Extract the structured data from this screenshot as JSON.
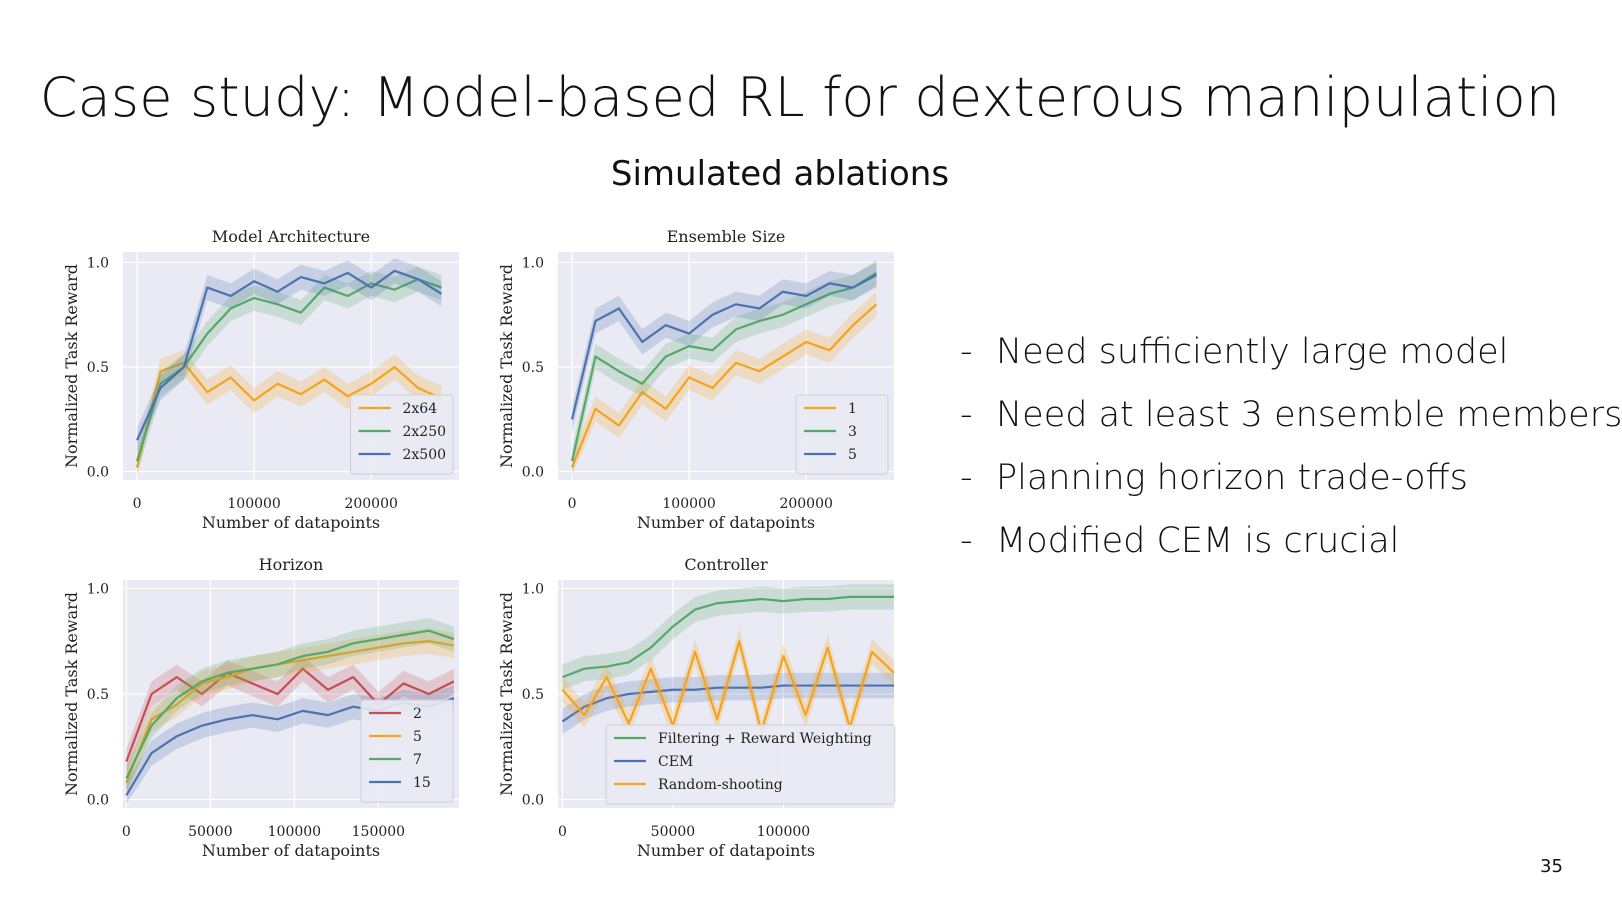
{
  "slide": {
    "title": "Case study: Model-based RL for dexterous manipulation",
    "subtitle": "Simulated ablations",
    "page_number": "35",
    "bullets": [
      "Need sufficiently large model",
      "Need at least 3 ensemble members",
      "Planning horizon trade-offs",
      "Modified CEM is crucial"
    ],
    "bullet_marker": "-"
  },
  "colors": {
    "plot_background": "#e9eaf3",
    "grid": "#ffffff",
    "orange": "#f5a31a",
    "green": "#55a868",
    "blue": "#4c72b0",
    "red": "#c44e52"
  },
  "chart_data": [
    {
      "id": "arch",
      "type": "line",
      "title": "Model Architecture",
      "xlabel": "Number of datapoints",
      "ylabel": "Normalized Task Reward",
      "xlim": [
        -12000,
        275000
      ],
      "ylim": [
        -0.04,
        1.05
      ],
      "xticks": [
        0,
        100000,
        200000
      ],
      "xtick_labels": [
        "0",
        "100000",
        "200000"
      ],
      "yticks": [
        0.0,
        0.5,
        1.0
      ],
      "ytick_labels": [
        "0.0",
        "0.5",
        "1.0"
      ],
      "legend_position": "lower-right",
      "x": [
        0,
        20000,
        40000,
        60000,
        80000,
        100000,
        120000,
        140000,
        160000,
        180000,
        200000,
        220000,
        240000,
        260000
      ],
      "series": [
        {
          "name": "2x64",
          "color": "#f5a31a",
          "values": [
            0.02,
            0.48,
            0.52,
            0.38,
            0.45,
            0.34,
            0.42,
            0.37,
            0.44,
            0.36,
            0.42,
            0.5,
            0.4,
            0.35
          ]
        },
        {
          "name": "2x250",
          "color": "#55a868",
          "values": [
            0.05,
            0.42,
            0.5,
            0.66,
            0.78,
            0.83,
            0.8,
            0.76,
            0.88,
            0.84,
            0.9,
            0.87,
            0.92,
            0.88
          ]
        },
        {
          "name": "2x500",
          "color": "#4c72b0",
          "values": [
            0.15,
            0.4,
            0.5,
            0.88,
            0.84,
            0.91,
            0.86,
            0.93,
            0.9,
            0.95,
            0.88,
            0.96,
            0.92,
            0.85
          ]
        }
      ]
    },
    {
      "id": "ensemble",
      "type": "line",
      "title": "Ensemble Size",
      "xlabel": "Number of datapoints",
      "ylabel": "Normalized Task Reward",
      "xlim": [
        -12000,
        275000
      ],
      "ylim": [
        -0.04,
        1.05
      ],
      "xticks": [
        0,
        100000,
        200000
      ],
      "xtick_labels": [
        "0",
        "100000",
        "200000"
      ],
      "yticks": [
        0.0,
        0.5,
        1.0
      ],
      "ytick_labels": [
        "0.0",
        "0.5",
        "1.0"
      ],
      "legend_position": "lower-right",
      "x": [
        0,
        20000,
        40000,
        60000,
        80000,
        100000,
        120000,
        140000,
        160000,
        180000,
        200000,
        220000,
        240000,
        260000
      ],
      "series": [
        {
          "name": "1",
          "color": "#f5a31a",
          "values": [
            0.02,
            0.3,
            0.22,
            0.38,
            0.3,
            0.45,
            0.4,
            0.52,
            0.48,
            0.55,
            0.62,
            0.58,
            0.7,
            0.8
          ]
        },
        {
          "name": "3",
          "color": "#55a868",
          "values": [
            0.05,
            0.55,
            0.48,
            0.42,
            0.55,
            0.6,
            0.58,
            0.68,
            0.72,
            0.75,
            0.8,
            0.85,
            0.88,
            0.95
          ]
        },
        {
          "name": "5",
          "color": "#4c72b0",
          "values": [
            0.25,
            0.72,
            0.78,
            0.62,
            0.7,
            0.66,
            0.75,
            0.8,
            0.78,
            0.86,
            0.84,
            0.9,
            0.88,
            0.94
          ]
        }
      ]
    },
    {
      "id": "horizon",
      "type": "line",
      "title": "Horizon",
      "xlabel": "Number of datapoints",
      "ylabel": "Normalized Task Reward",
      "xlim": [
        -2000,
        198000
      ],
      "ylim": [
        -0.04,
        1.04
      ],
      "xticks": [
        0,
        50000,
        100000,
        150000
      ],
      "xtick_labels": [
        "0",
        "50000",
        "100000",
        "150000"
      ],
      "yticks": [
        0.0,
        0.5,
        1.0
      ],
      "ytick_labels": [
        "0.0",
        "0.5",
        "1.0"
      ],
      "legend_position": "lower-right",
      "x": [
        0,
        15000,
        30000,
        45000,
        60000,
        75000,
        90000,
        105000,
        120000,
        135000,
        150000,
        165000,
        180000,
        195000
      ],
      "series": [
        {
          "name": "2",
          "color": "#c44e52",
          "values": [
            0.18,
            0.5,
            0.58,
            0.5,
            0.6,
            0.55,
            0.5,
            0.62,
            0.52,
            0.58,
            0.45,
            0.55,
            0.5,
            0.56
          ]
        },
        {
          "name": "5",
          "color": "#f5a31a",
          "values": [
            0.08,
            0.38,
            0.45,
            0.55,
            0.58,
            0.62,
            0.64,
            0.66,
            0.68,
            0.7,
            0.72,
            0.74,
            0.75,
            0.73
          ]
        },
        {
          "name": "7",
          "color": "#55a868",
          "values": [
            0.1,
            0.35,
            0.48,
            0.56,
            0.6,
            0.62,
            0.64,
            0.68,
            0.7,
            0.74,
            0.76,
            0.78,
            0.8,
            0.76
          ]
        },
        {
          "name": "15",
          "color": "#4c72b0",
          "values": [
            0.02,
            0.22,
            0.3,
            0.35,
            0.38,
            0.4,
            0.38,
            0.42,
            0.4,
            0.44,
            0.42,
            0.46,
            0.44,
            0.48
          ]
        }
      ]
    },
    {
      "id": "controller",
      "type": "line",
      "title": "Controller",
      "xlabel": "Number of datapoints",
      "ylabel": "Normalized Task Reward",
      "xlim": [
        -2000,
        150000
      ],
      "ylim": [
        -0.04,
        1.04
      ],
      "xticks": [
        0,
        50000,
        100000
      ],
      "xtick_labels": [
        "0",
        "50000",
        "100000"
      ],
      "yticks": [
        0.0,
        0.5,
        1.0
      ],
      "ytick_labels": [
        "0.0",
        "0.5",
        "1.0"
      ],
      "legend_position": "lower-left",
      "x": [
        0,
        10000,
        20000,
        30000,
        40000,
        50000,
        60000,
        70000,
        80000,
        90000,
        100000,
        110000,
        120000,
        130000,
        140000,
        150000
      ],
      "series": [
        {
          "name": "Filtering + Reward Weighting",
          "color": "#55a868",
          "values": [
            0.58,
            0.62,
            0.63,
            0.65,
            0.72,
            0.82,
            0.9,
            0.93,
            0.94,
            0.95,
            0.94,
            0.95,
            0.95,
            0.96,
            0.96,
            0.96
          ]
        },
        {
          "name": "CEM",
          "color": "#4c72b0",
          "values": [
            0.37,
            0.44,
            0.48,
            0.5,
            0.51,
            0.52,
            0.52,
            0.53,
            0.53,
            0.53,
            0.54,
            0.54,
            0.54,
            0.54,
            0.54,
            0.54
          ]
        },
        {
          "name": "Random-shooting",
          "color": "#f5a31a",
          "values": [
            0.52,
            0.4,
            0.58,
            0.36,
            0.62,
            0.35,
            0.7,
            0.38,
            0.75,
            0.32,
            0.68,
            0.4,
            0.72,
            0.34,
            0.7,
            0.6
          ]
        }
      ]
    }
  ]
}
